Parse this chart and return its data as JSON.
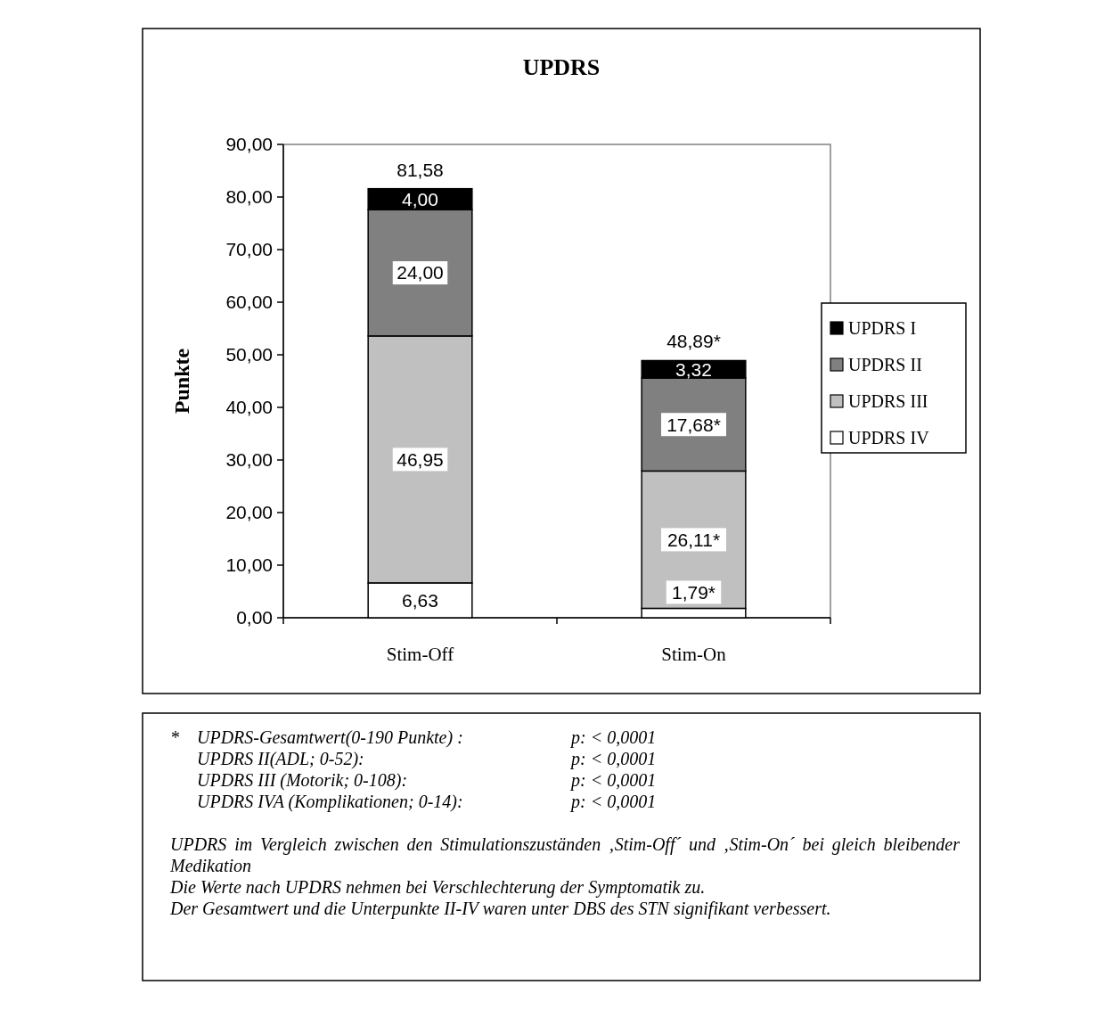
{
  "chart_data": {
    "type": "bar",
    "title": "UPDRS",
    "ylabel": "Punkte",
    "categories": [
      "Stim-Off",
      "Stim-On"
    ],
    "stacked": true,
    "series": [
      {
        "name": "UPDRS IV",
        "color": "#ffffff",
        "values": [
          6.63,
          1.79
        ],
        "value_labels": [
          "6,63",
          "1,79*"
        ]
      },
      {
        "name": "UPDRS III",
        "color": "#c0c0c0",
        "values": [
          46.95,
          26.11
        ],
        "value_labels": [
          "46,95",
          "26,11*"
        ]
      },
      {
        "name": "UPDRS II",
        "color": "#808080",
        "values": [
          24.0,
          17.68
        ],
        "value_labels": [
          "24,00",
          "17,68*"
        ]
      },
      {
        "name": "UPDRS I",
        "color": "#000000",
        "values": [
          4.0,
          3.32
        ],
        "value_labels": [
          "4,00",
          "3,32"
        ]
      }
    ],
    "totals": [
      "81,58",
      "48,89*"
    ],
    "ylim": [
      0,
      90
    ],
    "yticks": [
      {
        "value": 0,
        "label": "0,00"
      },
      {
        "value": 10,
        "label": "10,00"
      },
      {
        "value": 20,
        "label": "20,00"
      },
      {
        "value": 30,
        "label": "30,00"
      },
      {
        "value": 40,
        "label": "40,00"
      },
      {
        "value": 50,
        "label": "50,00"
      },
      {
        "value": 60,
        "label": "60,00"
      },
      {
        "value": 70,
        "label": "70,00"
      },
      {
        "value": 80,
        "label": "80,00"
      },
      {
        "value": 90,
        "label": "90,00"
      }
    ],
    "legend": "right",
    "annotations": [
      "*",
      "UPDRS-Gesamtwert(0-190 Punkte) :",
      "p: < 0,0001",
      "UPDRS II(ADL; 0-52):",
      "p: < 0,0001",
      "UPDRS III (Motorik; 0-108):",
      "p: < 0,0001",
      "UPDRS IVA (Komplikationen; 0-14):",
      "p: < 0,0001",
      "UPDRS im Vergleich zwischen den Stimulationszuständen ‚Stim-Off´ und ‚Stim-On´ bei gleich bleibender Medikation",
      "Die Werte nach UPDRS nehmen bei Verschlechterung der Symptomatik zu.",
      "Der Gesamtwert und die Unterpunkte II-IV waren unter DBS des STN signifikant verbessert."
    ]
  }
}
